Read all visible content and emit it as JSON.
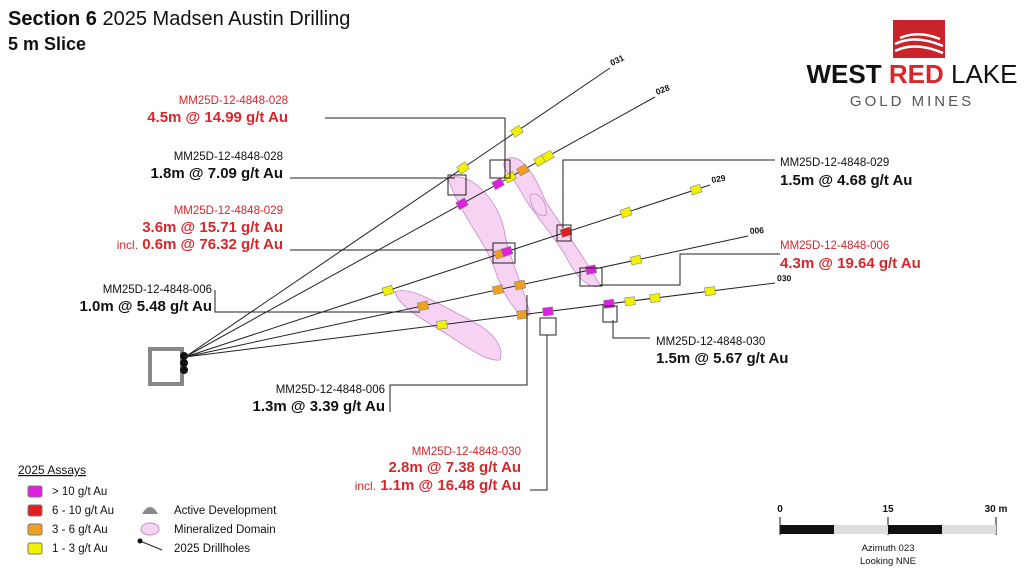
{
  "header": {
    "title_bold": "Section 6",
    "title": "2025 Madsen Austin Drilling",
    "subtitle": "5 m Slice"
  },
  "logo": {
    "word1": "WEST",
    "word2": "RED",
    "word3": "LAKE",
    "tagline": "GOLD MINES"
  },
  "drillholes": [
    "031",
    "028",
    "029",
    "006",
    "030"
  ],
  "callouts": [
    {
      "hole": "MM25D-12-4848-028",
      "interval": "4.5m @ 14.99 g/t Au"
    },
    {
      "hole": "MM25D-12-4848-028",
      "interval": "1.8m @ 7.09 g/t Au"
    },
    {
      "hole": "MM25D-12-4848-029",
      "interval": "3.6m @ 15.71 g/t Au",
      "incl_prefix": "incl.",
      "incl": "0.6m @ 76.32 g/t Au"
    },
    {
      "hole": "MM25D-12-4848-006",
      "interval": "1.0m @ 5.48 g/t Au"
    },
    {
      "hole": "MM25D-12-4848-029",
      "interval": "1.5m @ 4.68 g/t Au"
    },
    {
      "hole": "MM25D-12-4848-006",
      "interval": "4.3m @ 19.64 g/t Au"
    },
    {
      "hole": "MM25D-12-4848-030",
      "interval": "1.5m @ 5.67 g/t Au"
    },
    {
      "hole": "MM25D-12-4848-006",
      "interval": "1.3m @ 3.39 g/t Au"
    },
    {
      "hole": "MM25D-12-4848-030",
      "interval": "2.8m @ 7.38 g/t Au",
      "incl_prefix": "incl.",
      "incl": "1.1m @ 16.48 g/t Au"
    }
  ],
  "legend": {
    "title": "2025 Assays",
    "assays": [
      "> 10 g/t Au",
      "6 - 10 g/t Au",
      "3 - 6 g/t Au",
      "1 - 3 g/t Au"
    ],
    "features": [
      "Active Development",
      "Mineralized Domain",
      "2025 Drillholes"
    ]
  },
  "scale": {
    "ticks": [
      "0",
      "15",
      "30 m"
    ],
    "azimuth": "Azimuth 023",
    "looking": "Looking NNE"
  }
}
